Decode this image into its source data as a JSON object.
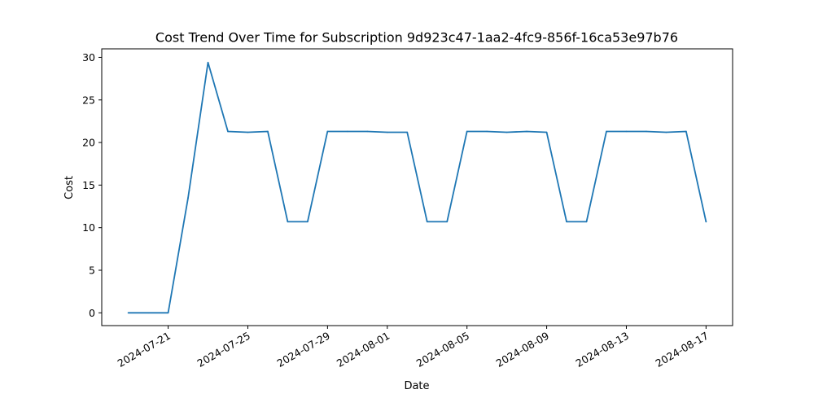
{
  "chart_data": {
    "type": "line",
    "title": "Cost Trend Over Time for Subscription 9d923c47-1aa2-4fc9-856f-16ca53e97b76",
    "xlabel": "Date",
    "ylabel": "Cost",
    "grid": false,
    "ylim": [
      -1.5,
      31.0
    ],
    "xlim": [
      "2024-07-17T16:00",
      "2024-08-18T08:00"
    ],
    "x_ticks": [
      "2024-07-21",
      "2024-07-25",
      "2024-07-29",
      "2024-08-01",
      "2024-08-05",
      "2024-08-09",
      "2024-08-13",
      "2024-08-17"
    ],
    "y_ticks": [
      0,
      5,
      10,
      15,
      20,
      25,
      30
    ],
    "series_color": "#1f77b4",
    "x": [
      "2024-07-19",
      "2024-07-20",
      "2024-07-21",
      "2024-07-22",
      "2024-07-23",
      "2024-07-24",
      "2024-07-25",
      "2024-07-26",
      "2024-07-27",
      "2024-07-28",
      "2024-07-29",
      "2024-07-30",
      "2024-07-31",
      "2024-08-01",
      "2024-08-02",
      "2024-08-03",
      "2024-08-04",
      "2024-08-05",
      "2024-08-06",
      "2024-08-07",
      "2024-08-08",
      "2024-08-09",
      "2024-08-10",
      "2024-08-11",
      "2024-08-12",
      "2024-08-13",
      "2024-08-14",
      "2024-08-15",
      "2024-08-16",
      "2024-08-17"
    ],
    "series": [
      {
        "values": [
          0.0,
          0.0,
          0.0,
          13.5,
          29.4,
          21.3,
          21.2,
          21.3,
          10.7,
          10.7,
          21.3,
          21.3,
          21.3,
          21.2,
          21.2,
          10.7,
          10.7,
          21.3,
          21.3,
          21.2,
          21.3,
          21.2,
          10.7,
          10.7,
          21.3,
          21.3,
          21.3,
          21.2,
          21.3,
          10.7
        ]
      }
    ]
  }
}
